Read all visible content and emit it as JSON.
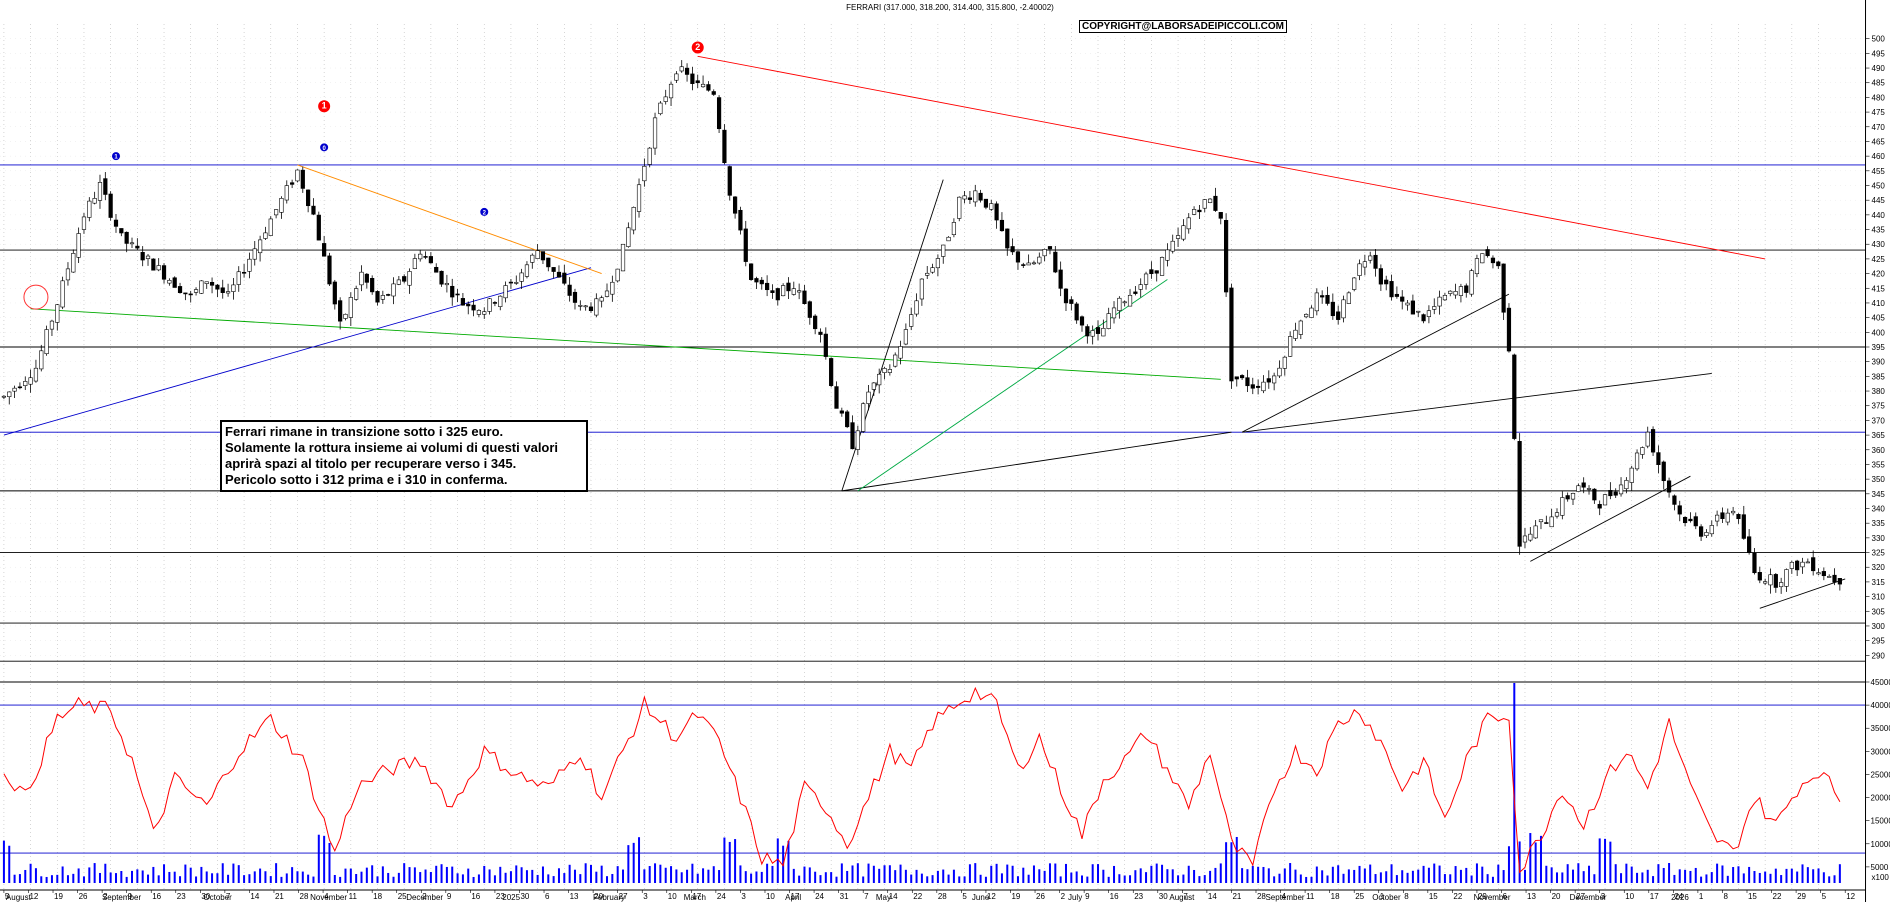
{
  "chart_data": [
    {
      "type": "candlestick",
      "title": "FERRARI (317.000, 318.200, 314.400, 315.800, -2.40002)",
      "copyright": "COPYRIGHT@LABORSADEIPICCOLI.COM",
      "ylim": [
        285,
        505
      ],
      "y_ticks": [
        290,
        295,
        300,
        305,
        310,
        315,
        320,
        325,
        330,
        335,
        340,
        345,
        350,
        355,
        360,
        365,
        370,
        375,
        380,
        385,
        390,
        395,
        400,
        405,
        410,
        415,
        420,
        425,
        430,
        435,
        440,
        445,
        450,
        455,
        460,
        465,
        470,
        475,
        480,
        485,
        490,
        495,
        500
      ],
      "grid": true,
      "months": [
        "August",
        "September",
        "October",
        "November",
        "December",
        "2025",
        "February",
        "March",
        "April",
        "May",
        "June",
        "July",
        "August",
        "September",
        "October",
        "November",
        "December",
        "2026"
      ],
      "day_ticks": [
        "5",
        "12",
        "19",
        "26",
        "2",
        "9",
        "16",
        "23",
        "30",
        "7",
        "14",
        "21",
        "28",
        "4",
        "11",
        "18",
        "25",
        "2",
        "9",
        "16",
        "23",
        "30",
        "6",
        "13",
        "20",
        "27",
        "3",
        "10",
        "17",
        "24",
        "3",
        "10",
        "17",
        "24",
        "31",
        "7",
        "14",
        "22",
        "28",
        "5",
        "12",
        "19",
        "26",
        "2",
        "9",
        "16",
        "23",
        "30",
        "7",
        "14",
        "21",
        "28",
        "4",
        "11",
        "18",
        "25",
        "1",
        "8",
        "15",
        "22",
        "29",
        "6",
        "13",
        "20",
        "27",
        "3",
        "10",
        "17",
        "24",
        "1",
        "8",
        "15",
        "22",
        "29",
        "5",
        "12",
        "19"
      ],
      "horizontal_levels": [
        457,
        428,
        395,
        366,
        346,
        325,
        301,
        288
      ],
      "annotations": [
        {
          "label": "1",
          "style": "red-circle"
        },
        {
          "label": "2",
          "style": "red-circle"
        },
        {
          "label": "1",
          "style": "blue-dot"
        },
        {
          "label": "0",
          "style": "blue-dot"
        },
        {
          "label": "2",
          "style": "blue-dot"
        }
      ],
      "note": [
        "Ferrari rimane in transizione sotto i 325 euro.",
        "Solamente la rottura insieme ai volumi di questi valori",
        "aprirà spazi al titolo per recuperare verso i 345.",
        "Pericolo sotto i 312 prima e i 310 in conferma."
      ],
      "anchors": [
        [
          0,
          378
        ],
        [
          6,
          388
        ],
        [
          10,
          410
        ],
        [
          15,
          440
        ],
        [
          18,
          450
        ],
        [
          22,
          432
        ],
        [
          28,
          423
        ],
        [
          35,
          412
        ],
        [
          38,
          418
        ],
        [
          42,
          412
        ],
        [
          48,
          432
        ],
        [
          52,
          445
        ],
        [
          55,
          455
        ],
        [
          58,
          440
        ],
        [
          60,
          425
        ],
        [
          63,
          402
        ],
        [
          67,
          420
        ],
        [
          70,
          410
        ],
        [
          75,
          418
        ],
        [
          78,
          428
        ],
        [
          82,
          418
        ],
        [
          86,
          410
        ],
        [
          90,
          408
        ],
        [
          96,
          418
        ],
        [
          100,
          428
        ],
        [
          104,
          418
        ],
        [
          108,
          408
        ],
        [
          112,
          410
        ],
        [
          116,
          428
        ],
        [
          119,
          450
        ],
        [
          122,
          472
        ],
        [
          126,
          490
        ],
        [
          130,
          484
        ],
        [
          133,
          482
        ],
        [
          136,
          448
        ],
        [
          140,
          418
        ],
        [
          144,
          412
        ],
        [
          148,
          416
        ],
        [
          153,
          400
        ],
        [
          156,
          375
        ],
        [
          159,
          362
        ],
        [
          162,
          380
        ],
        [
          166,
          388
        ],
        [
          169,
          400
        ],
        [
          172,
          418
        ],
        [
          176,
          428
        ],
        [
          179,
          445
        ],
        [
          182,
          448
        ],
        [
          185,
          442
        ],
        [
          188,
          428
        ],
        [
          192,
          422
        ],
        [
          196,
          428
        ],
        [
          198,
          415
        ],
        [
          202,
          402
        ],
        [
          205,
          398
        ],
        [
          208,
          408
        ],
        [
          212,
          415
        ],
        [
          216,
          422
        ],
        [
          220,
          432
        ],
        [
          223,
          442
        ],
        [
          226,
          445
        ],
        [
          228,
          440
        ],
        [
          230,
          385
        ],
        [
          234,
          382
        ],
        [
          238,
          385
        ],
        [
          242,
          402
        ],
        [
          246,
          412
        ],
        [
          250,
          405
        ],
        [
          253,
          420
        ],
        [
          256,
          428
        ],
        [
          258,
          418
        ],
        [
          262,
          410
        ],
        [
          266,
          405
        ],
        [
          270,
          412
        ],
        [
          274,
          415
        ],
        [
          277,
          428
        ],
        [
          280,
          422
        ],
        [
          282,
          395
        ],
        [
          283,
          365
        ],
        [
          284,
          328
        ],
        [
          287,
          333
        ],
        [
          291,
          340
        ],
        [
          295,
          348
        ],
        [
          299,
          342
        ],
        [
          303,
          348
        ],
        [
          306,
          358
        ],
        [
          308,
          366
        ],
        [
          311,
          350
        ],
        [
          314,
          338
        ],
        [
          318,
          332
        ],
        [
          321,
          336
        ],
        [
          324,
          340
        ],
        [
          326,
          330
        ],
        [
          328,
          318
        ],
        [
          332,
          315
        ],
        [
          335,
          320
        ],
        [
          338,
          322
        ],
        [
          341,
          318
        ],
        [
          343,
          316
        ]
      ]
    },
    {
      "type": "line",
      "title": "",
      "ylim": [
        0,
        45000
      ],
      "y_ticks": [
        5000,
        10000,
        15000,
        20000,
        25000,
        30000,
        35000,
        40000,
        45000
      ],
      "reference_levels": [
        40000,
        8000
      ],
      "series": [
        {
          "name": "",
          "color": "#ff0000"
        }
      ],
      "anchors": [
        [
          0,
          26000
        ],
        [
          4,
          20000
        ],
        [
          10,
          37000
        ],
        [
          14,
          40000
        ],
        [
          20,
          39000
        ],
        [
          24,
          28000
        ],
        [
          28,
          12000
        ],
        [
          32,
          24000
        ],
        [
          38,
          18000
        ],
        [
          44,
          30000
        ],
        [
          50,
          37000
        ],
        [
          56,
          28000
        ],
        [
          62,
          8000
        ],
        [
          66,
          22000
        ],
        [
          72,
          26000
        ],
        [
          78,
          28000
        ],
        [
          84,
          18000
        ],
        [
          90,
          30000
        ],
        [
          96,
          25000
        ],
        [
          102,
          22000
        ],
        [
          108,
          30000
        ],
        [
          112,
          20000
        ],
        [
          116,
          30000
        ],
        [
          120,
          40000
        ],
        [
          126,
          33000
        ],
        [
          130,
          38000
        ],
        [
          134,
          32000
        ],
        [
          138,
          20000
        ],
        [
          142,
          7000
        ],
        [
          146,
          5500
        ],
        [
          150,
          22000
        ],
        [
          154,
          18000
        ],
        [
          158,
          10000
        ],
        [
          162,
          20000
        ],
        [
          166,
          30000
        ],
        [
          170,
          26000
        ],
        [
          174,
          36000
        ],
        [
          178,
          40000
        ],
        [
          182,
          43000
        ],
        [
          186,
          40000
        ],
        [
          190,
          26000
        ],
        [
          194,
          33000
        ],
        [
          198,
          22000
        ],
        [
          202,
          12000
        ],
        [
          206,
          24000
        ],
        [
          210,
          28000
        ],
        [
          214,
          34000
        ],
        [
          218,
          26000
        ],
        [
          222,
          18000
        ],
        [
          226,
          30000
        ],
        [
          230,
          10000
        ],
        [
          234,
          5000
        ],
        [
          238,
          22000
        ],
        [
          242,
          30000
        ],
        [
          246,
          26000
        ],
        [
          250,
          36000
        ],
        [
          254,
          39000
        ],
        [
          258,
          32000
        ],
        [
          262,
          22000
        ],
        [
          266,
          28000
        ],
        [
          270,
          15000
        ],
        [
          274,
          28000
        ],
        [
          278,
          37000
        ],
        [
          282,
          38000
        ],
        [
          284,
          4000
        ],
        [
          288,
          12000
        ],
        [
          292,
          22000
        ],
        [
          296,
          14000
        ],
        [
          300,
          24000
        ],
        [
          304,
          30000
        ],
        [
          308,
          22000
        ],
        [
          312,
          36000
        ],
        [
          316,
          22000
        ],
        [
          320,
          12000
        ],
        [
          324,
          8000
        ],
        [
          328,
          20000
        ],
        [
          332,
          14000
        ],
        [
          336,
          22000
        ],
        [
          340,
          26000
        ],
        [
          344,
          20000
        ]
      ]
    },
    {
      "type": "bar",
      "title": "",
      "ylim": [
        0,
        10000
      ],
      "y_ticks": [
        5000,
        10000
      ],
      "axis_unit": "x100",
      "series": [
        {
          "name": "",
          "color": "#0000ff"
        }
      ]
    }
  ]
}
